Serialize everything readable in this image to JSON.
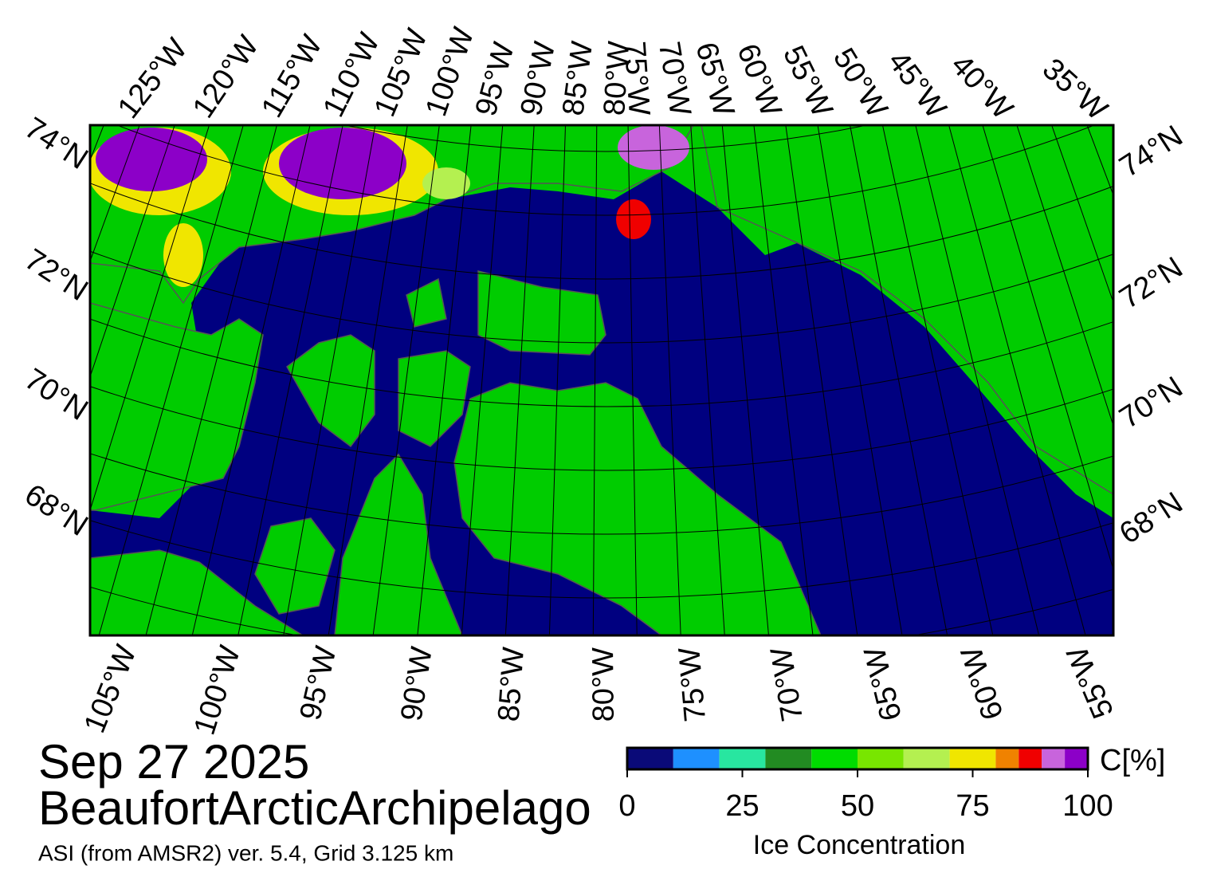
{
  "map": {
    "top_labels": [
      "125°W",
      "120°W",
      "115°W",
      "110°W",
      "105°W",
      "100°W",
      "95°W",
      "90°W",
      "85°W",
      "80°W",
      "75°W",
      "70°W",
      "65°W",
      "60°W",
      "55°W",
      "50°W",
      "45°W",
      "40°W",
      "35°W"
    ],
    "bottom_labels": [
      "105°W",
      "100°W",
      "95°W",
      "90°W",
      "85°W",
      "80°W",
      "75°W",
      "70°W",
      "65°W",
      "60°W",
      "55°W"
    ],
    "left_labels": [
      "74°N",
      "72°N",
      "70°N",
      "68°N"
    ],
    "right_labels": [
      "74°N",
      "72°N",
      "70°N",
      "68°N"
    ]
  },
  "date": "Sep 27 2025",
  "region": "BeaufortArcticArchipelago",
  "source": "ASI (from AMSR2) ver. 5.4,  Grid 3.125 km",
  "colorbar": {
    "bins": [
      0,
      10,
      20,
      30,
      40,
      50,
      60,
      70,
      80,
      85,
      90,
      95,
      100
    ],
    "colors": [
      "#0a0a78",
      "#1e90ff",
      "#28e6a0",
      "#228b22",
      "#00dc00",
      "#78e600",
      "#b4f050",
      "#f0e600",
      "#f08200",
      "#f00000",
      "#c864dc",
      "#8c00c8"
    ],
    "xlim": [
      0,
      100
    ],
    "ticks": [
      0,
      25,
      50,
      75,
      100
    ],
    "unit": "C[%]",
    "title": "Ice Concentration"
  }
}
